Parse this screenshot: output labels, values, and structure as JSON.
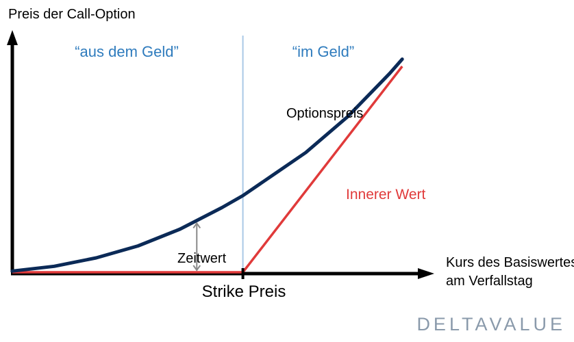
{
  "chart_data": {
    "type": "line",
    "ylabel": "Preis der Call-Option",
    "xlabel": "Kurs des Basiswertes am Verfallstag",
    "xlabel_lines": [
      "Kurs des Basiswertes",
      "am Verfallstag"
    ],
    "strike_label": "Strike Preis",
    "xlim": [
      0,
      100
    ],
    "ylim": [
      0,
      100
    ],
    "strike_x": 55,
    "regions": [
      {
        "label": "“aus dem Geld”"
      },
      {
        "label": "“im Geld”"
      }
    ],
    "series": [
      {
        "name": "Optionspreis",
        "x": [
          0,
          10,
          20,
          30,
          40,
          50,
          55,
          60,
          70,
          80,
          90,
          93
        ],
        "y": [
          0.5,
          2.5,
          6,
          11,
          18,
          27,
          32,
          38,
          50,
          65,
          83,
          89
        ]
      },
      {
        "name": "Innerer Wert",
        "x": [
          0,
          55,
          93
        ],
        "y": [
          0,
          0,
          86
        ]
      }
    ],
    "annotation": {
      "label": "Zeitwert",
      "x": 44
    }
  },
  "branding": {
    "logo_text": "DELTAVALUE"
  },
  "colors": {
    "option_price": "#0b2a57",
    "intrinsic": "#e03a3a",
    "region_label": "#2e7bbd",
    "axis": "#000000",
    "strike_line": "#a9c9e6",
    "logo": "#8a9aab"
  }
}
